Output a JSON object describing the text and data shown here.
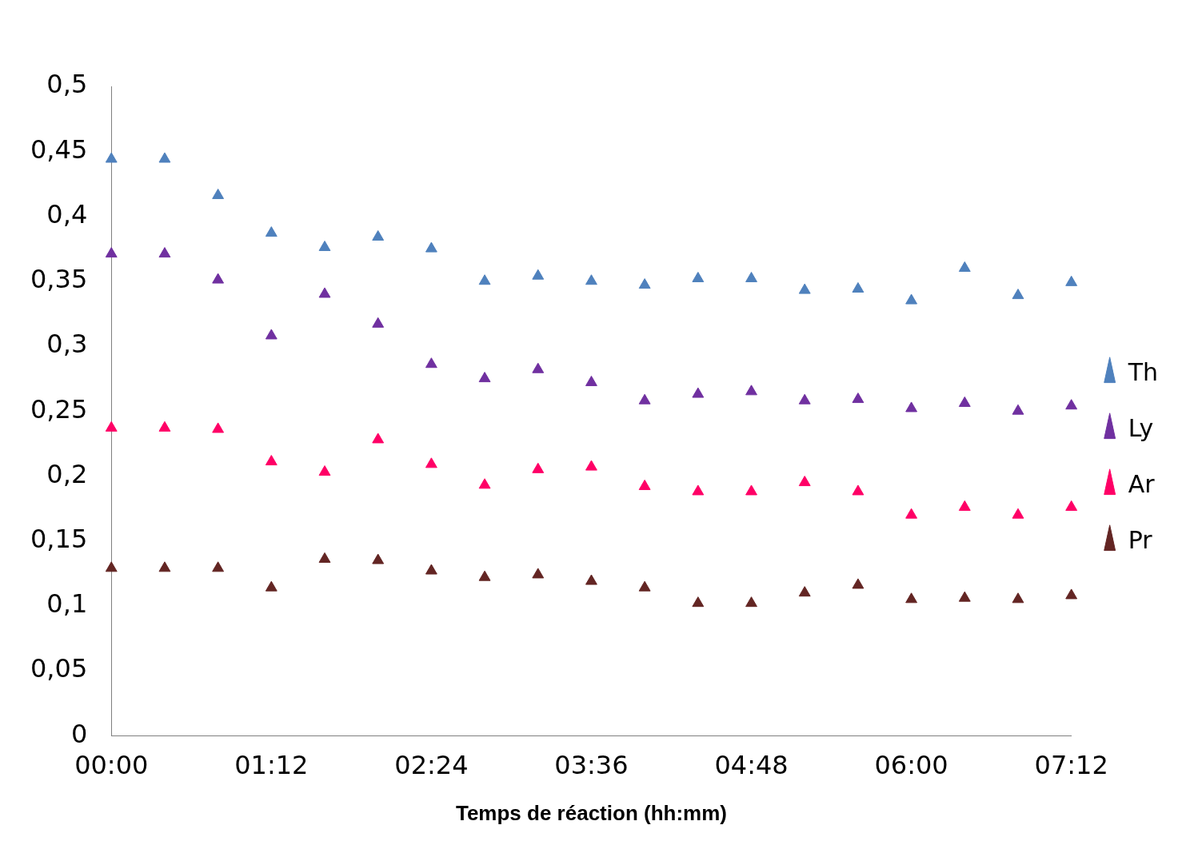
{
  "chart_data": {
    "type": "scatter",
    "xlabel": "Temps de réaction (hh:mm)",
    "x": [
      0,
      0.4,
      0.8,
      1.2,
      1.6,
      2.0,
      2.4,
      2.8,
      3.2,
      3.6,
      4.0,
      4.4,
      4.8,
      5.2,
      5.6,
      6.0,
      6.4,
      6.8,
      7.2
    ],
    "xlim": [
      0,
      7.2
    ],
    "xticks": [
      {
        "value": 0,
        "label": "00:00"
      },
      {
        "value": 1.2,
        "label": "01:12"
      },
      {
        "value": 2.4,
        "label": "02:24"
      },
      {
        "value": 3.6,
        "label": "03:36"
      },
      {
        "value": 4.8,
        "label": "04:48"
      },
      {
        "value": 6,
        "label": "06:00"
      },
      {
        "value": 7.2,
        "label": "07:12"
      }
    ],
    "ylim": [
      0,
      0.5
    ],
    "yticks": [
      0,
      {
        "value": 0.05,
        "label": "0,05"
      },
      {
        "value": 0.1,
        "label": "0,1"
      },
      {
        "value": 0.15,
        "label": "0,15"
      },
      {
        "value": 0.2,
        "label": "0,2"
      },
      {
        "value": 0.25,
        "label": "0,25"
      },
      {
        "value": 0.3,
        "label": "0,3"
      },
      {
        "value": 0.35,
        "label": "0,35"
      },
      {
        "value": 0.4,
        "label": "0,4"
      },
      {
        "value": 0.45,
        "label": "0,45"
      },
      {
        "value": 0.5,
        "label": "0,5"
      }
    ],
    "grid": false,
    "legend": "right",
    "marker": "triangle",
    "series": [
      {
        "name": "Th",
        "color": "#4f81bd",
        "values": [
          0.444,
          0.444,
          0.416,
          0.387,
          0.376,
          0.384,
          0.375,
          0.35,
          0.354,
          0.35,
          0.347,
          0.352,
          0.352,
          0.343,
          0.344,
          0.335,
          0.36,
          0.339,
          0.349
        ]
      },
      {
        "name": "Ly",
        "color": "#7030a0",
        "values": [
          0.371,
          0.371,
          0.351,
          0.308,
          0.34,
          0.317,
          0.286,
          0.275,
          0.282,
          0.272,
          0.258,
          0.263,
          0.265,
          0.258,
          0.259,
          0.252,
          0.256,
          0.25,
          0.254
        ]
      },
      {
        "name": "Ar",
        "color": "#ff0066",
        "values": [
          0.237,
          0.237,
          0.236,
          0.211,
          0.203,
          0.228,
          0.209,
          0.193,
          0.205,
          0.207,
          0.192,
          0.188,
          0.188,
          0.195,
          0.188,
          0.17,
          0.176,
          0.17,
          0.176
        ]
      },
      {
        "name": "Pr",
        "color": "#632523",
        "values": [
          0.129,
          0.129,
          0.129,
          0.114,
          0.136,
          0.135,
          0.127,
          0.122,
          0.124,
          0.119,
          0.114,
          0.102,
          0.102,
          0.11,
          0.116,
          0.105,
          0.106,
          0.105,
          0.108
        ]
      }
    ]
  }
}
